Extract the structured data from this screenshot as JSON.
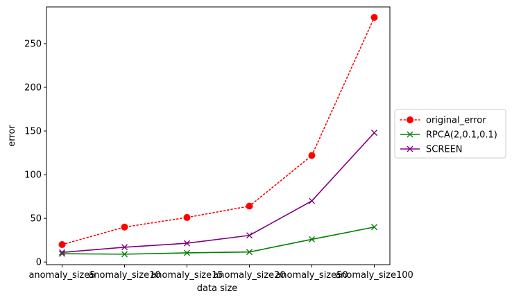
{
  "chart_data": {
    "type": "line",
    "title": "",
    "xlabel": "data size",
    "ylabel": "error",
    "categories": [
      "anomaly_size5",
      "anomaly_size10",
      "anomaly_size15",
      "anomaly_size20",
      "anomaly_size50",
      "anomaly_size100"
    ],
    "ylim": [
      -3,
      292
    ],
    "yticks": [
      0,
      50,
      100,
      150,
      200,
      250
    ],
    "grid": false,
    "legend_position": "outside-right",
    "series": [
      {
        "name": "original_error",
        "values": [
          20,
          40,
          51,
          64,
          122,
          280
        ],
        "color": "#ff0000",
        "linestyle": "dotted",
        "marker": "circle"
      },
      {
        "name": "RPCA(2,0.1,0.1)",
        "values": [
          9.5,
          9,
          10.5,
          11.5,
          26,
          40
        ],
        "color": "#008000",
        "linestyle": "solid",
        "marker": "x"
      },
      {
        "name": "SCREEN",
        "values": [
          11,
          17,
          21.5,
          30.5,
          70,
          148
        ],
        "color": "#800080",
        "linestyle": "solid",
        "marker": "x"
      }
    ]
  }
}
